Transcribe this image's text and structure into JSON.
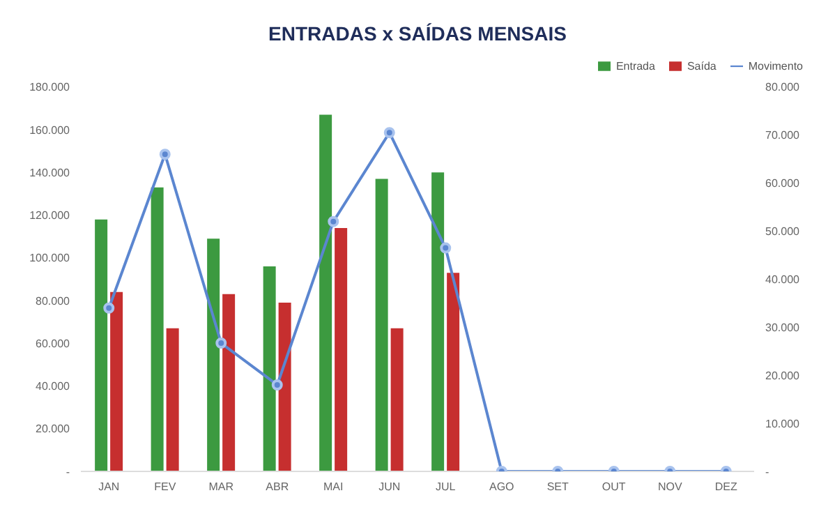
{
  "chart_data": {
    "type": "bar",
    "title": "ENTRADAS x SAÍDAS MENSAIS",
    "categories": [
      "JAN",
      "FEV",
      "MAR",
      "ABR",
      "MAI",
      "JUN",
      "JUL",
      "AGO",
      "SET",
      "OUT",
      "NOV",
      "DEZ"
    ],
    "series": [
      {
        "name": "Entrada",
        "color": "#3c9a40",
        "values": [
          118000,
          133000,
          109000,
          96000,
          167000,
          137000,
          140000,
          null,
          null,
          null,
          null,
          null
        ]
      },
      {
        "name": "Saída",
        "color": "#c62f2f",
        "values": [
          84000,
          67000,
          83000,
          79000,
          114000,
          67000,
          93000,
          null,
          null,
          null,
          null,
          null
        ]
      },
      {
        "name": "Movimento",
        "type": "line",
        "axis": "y2",
        "color": "#5b86d0",
        "values": [
          34000,
          66000,
          26700,
          18000,
          52000,
          70500,
          46500,
          0,
          0,
          0,
          0,
          0
        ]
      }
    ],
    "ylim": [
      0,
      180000
    ],
    "yticks": [
      {
        "value": 0,
        "label": "-"
      },
      {
        "value": 20000,
        "label": "20.000"
      },
      {
        "value": 40000,
        "label": "40.000"
      },
      {
        "value": 60000,
        "label": "60.000"
      },
      {
        "value": 80000,
        "label": "80.000"
      },
      {
        "value": 100000,
        "label": "100.000"
      },
      {
        "value": 120000,
        "label": "120.000"
      },
      {
        "value": 140000,
        "label": "140.000"
      },
      {
        "value": 160000,
        "label": "160.000"
      },
      {
        "value": 180000,
        "label": "180.000"
      }
    ],
    "y2lim": [
      0,
      80000
    ],
    "y2ticks": [
      {
        "value": 0,
        "label": "-"
      },
      {
        "value": 10000,
        "label": "10.000"
      },
      {
        "value": 20000,
        "label": "20.000"
      },
      {
        "value": 30000,
        "label": "30.000"
      },
      {
        "value": 40000,
        "label": "40.000"
      },
      {
        "value": 50000,
        "label": "50.000"
      },
      {
        "value": 60000,
        "label": "60.000"
      },
      {
        "value": 70000,
        "label": "70.000"
      },
      {
        "value": 80000,
        "label": "80.000"
      }
    ],
    "marker": "circle",
    "line_style": "solid",
    "legend": "top right",
    "grid": false
  }
}
